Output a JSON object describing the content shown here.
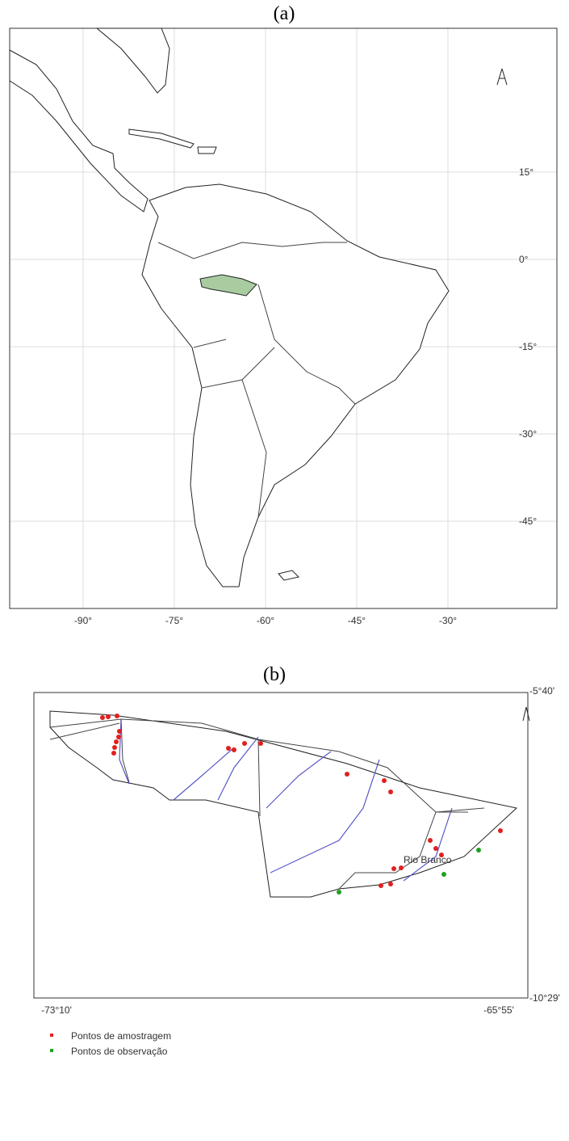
{
  "map_a": {
    "label": "(a)",
    "lon_labels": [
      "-90°",
      "-75°",
      "-60°",
      "-45°",
      "-30°"
    ],
    "lat_labels": [
      "15°",
      "0°",
      "-15°",
      "-30°",
      "-45°"
    ]
  },
  "map_b": {
    "label": "(b)",
    "north_label": "-5°40'",
    "south_label": "-10°29'",
    "west_label": "-73°10'",
    "east_label": "-65°55'",
    "place": "Rio Branco"
  },
  "legend": [
    {
      "label": "Pontos de amostragem",
      "color": "#e02020"
    },
    {
      "label": "Pontos de observação",
      "color": "#20a020"
    }
  ]
}
